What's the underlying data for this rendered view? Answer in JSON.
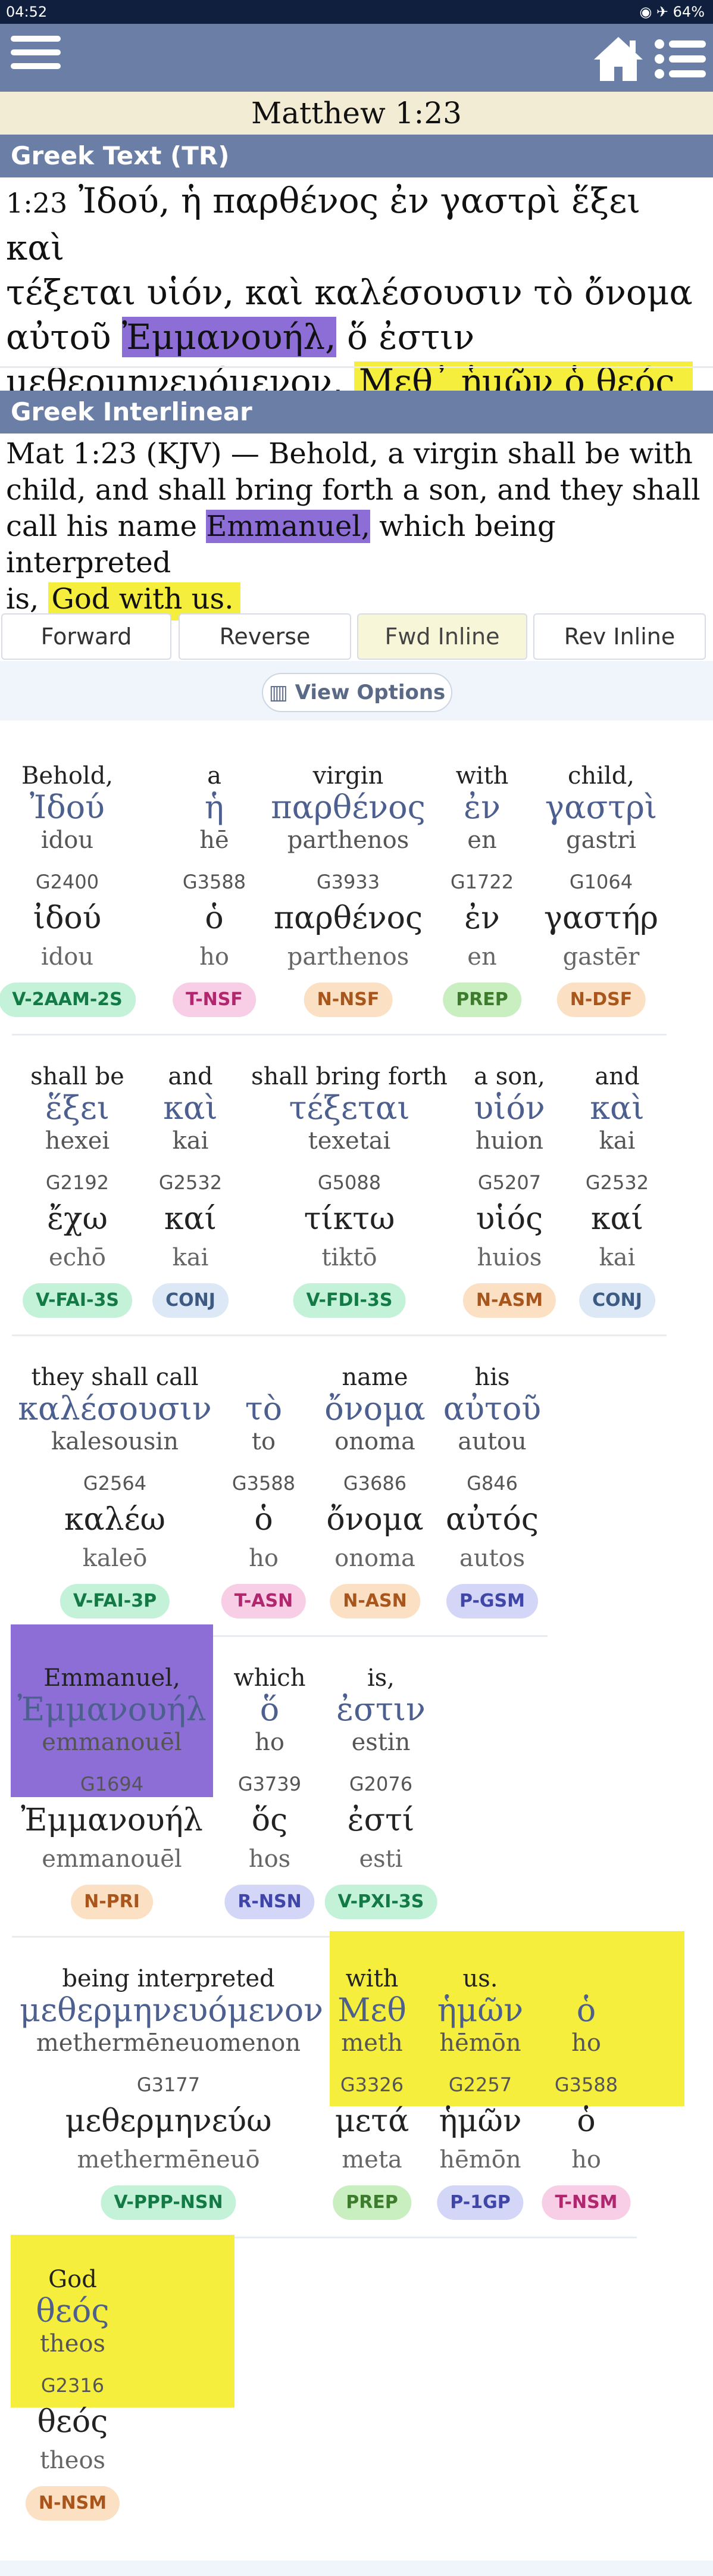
{
  "status": {
    "time": "04:52",
    "battery": "64%"
  },
  "page": {
    "title": "Matthew 1:23"
  },
  "greek_section": {
    "header": "Greek Text (TR)",
    "verse_num": "1:23",
    "line1": "Ἰδού, ἡ παρθένος ἐν γαστρὶ ἕξει καὶ",
    "line2": "τέξεται υἱόν, καὶ καλέσουσιν τὸ ὄνομα",
    "line3_a": "αὐτοῦ",
    "line3_hl": "Ἐμμανουήλ,",
    "line3_b": "ὅ ἐστιν",
    "line4_a": "μεθερμηνευόμενον,",
    "line4_hl": "Μεθ᾽ ἡμῶν ὁ θεός"
  },
  "interlinear_section": {
    "header": "Greek Interlinear",
    "kjv_1": "Mat 1:23 (KJV) — Behold, a virgin shall be with",
    "kjv_2": "child, and shall bring forth a son, and they shall",
    "kjv_3a": "call his name",
    "kjv_3hl": "Emmanuel,",
    "kjv_3b": "which being interpreted",
    "kjv_4a": "is,",
    "kjv_4hl": "God with us."
  },
  "tabs": [
    {
      "label": "Forward"
    },
    {
      "label": "Reverse"
    },
    {
      "label": "Fwd Inline"
    },
    {
      "label": "Rev Inline"
    }
  ],
  "view_options_label": "View Options",
  "colors": {
    "V": "#c3f2d9",
    "V_text": "#137a45",
    "T": "#f8cde6",
    "T_text": "#b0276d",
    "N": "#fbe0c3",
    "N_text": "#a8561c",
    "PREP": "#c9eec0",
    "PREP_text": "#3d7c2d",
    "CONJ": "#dce8f6",
    "CONJ_text": "#3c5a82",
    "P": "#d3d6f7",
    "P_text": "#3f46a8",
    "R": "#d3d6f7",
    "R_text": "#3f46a8"
  },
  "words": [
    {
      "en": "Behold,",
      "gr": "Ἰδού",
      "tr": "idou",
      "strong": "G2400",
      "lex": "ἰδού",
      "ltr": "idou",
      "morph": "V-2AAM-2S"
    },
    {
      "en": "a",
      "gr": "ἡ",
      "tr": "hē",
      "strong": "G3588",
      "lex": "ὁ",
      "ltr": "ho",
      "morph": "T-NSF"
    },
    {
      "en": "virgin",
      "gr": "παρθένος",
      "tr": "parthenos",
      "strong": "G3933",
      "lex": "παρθένος",
      "ltr": "parthenos",
      "morph": "N-NSF"
    },
    {
      "en": "with",
      "gr": "ἐν",
      "tr": "en",
      "strong": "G1722",
      "lex": "ἐν",
      "ltr": "en",
      "morph": "PREP"
    },
    {
      "en": "child,",
      "gr": "γαστρὶ",
      "tr": "gastri",
      "strong": "G1064",
      "lex": "γαστήρ",
      "ltr": "gastēr",
      "morph": "N-DSF"
    },
    {
      "en": "shall be",
      "gr": "ἕξει",
      "tr": "hexei",
      "strong": "G2192",
      "lex": "ἔχω",
      "ltr": "echō",
      "morph": "V-FAI-3S"
    },
    {
      "en": "and",
      "gr": "καὶ",
      "tr": "kai",
      "strong": "G2532",
      "lex": "καί",
      "ltr": "kai",
      "morph": "CONJ"
    },
    {
      "en": "shall bring forth",
      "gr": "τέξεται",
      "tr": "texetai",
      "strong": "G5088",
      "lex": "τίκτω",
      "ltr": "tiktō",
      "morph": "V-FDI-3S"
    },
    {
      "en": "a son,",
      "gr": "υἱόν",
      "tr": "huion",
      "strong": "G5207",
      "lex": "υἱός",
      "ltr": "huios",
      "morph": "N-ASM"
    },
    {
      "en": "and",
      "gr": "καὶ",
      "tr": "kai",
      "strong": "G2532",
      "lex": "καί",
      "ltr": "kai",
      "morph": "CONJ"
    },
    {
      "en": "they shall call",
      "gr": "καλέσουσιν",
      "tr": "kalesousin",
      "strong": "G2564",
      "lex": "καλέω",
      "ltr": "kaleō",
      "morph": "V-FAI-3P"
    },
    {
      "en": "",
      "gr": "τὸ",
      "tr": "to",
      "strong": "G3588",
      "lex": "ὁ",
      "ltr": "ho",
      "morph": "T-ASN"
    },
    {
      "en": "name",
      "gr": "ὄνομα",
      "tr": "onoma",
      "strong": "G3686",
      "lex": "ὄνομα",
      "ltr": "onoma",
      "morph": "N-ASN"
    },
    {
      "en": "his",
      "gr": "αὐτοῦ",
      "tr": "autou",
      "strong": "G846",
      "lex": "αὐτός",
      "ltr": "autos",
      "morph": "P-GSM"
    },
    {
      "en": "Emmanuel,",
      "gr": "Ἐμμανουήλ",
      "tr": "emmanouēl",
      "strong": "G1694",
      "lex": "Ἐμμανουήλ",
      "ltr": "emmanouēl",
      "morph": "N-PRI"
    },
    {
      "en": "which",
      "gr": "ὅ",
      "tr": "ho",
      "strong": "G3739",
      "lex": "ὅς",
      "ltr": "hos",
      "morph": "R-NSN"
    },
    {
      "en": "is,",
      "gr": "ἐστιν",
      "tr": "estin",
      "strong": "G2076",
      "lex": "ἐστί",
      "ltr": "esti",
      "morph": "V-PXI-3S"
    },
    {
      "en": "being interpreted",
      "gr": "μεθερμηνευόμενον",
      "tr": "methermēneuomenon",
      "strong": "G3177",
      "lex": "μεθερμηνεύω",
      "ltr": "methermēneuō",
      "morph": "V-PPP-NSN"
    },
    {
      "en": "with",
      "gr": "Μεθ",
      "tr": "meth",
      "strong": "G3326",
      "lex": "μετά",
      "ltr": "meta",
      "morph": "PREP"
    },
    {
      "en": "us.",
      "gr": "ἡμῶν",
      "tr": "hēmōn",
      "strong": "G2257",
      "lex": "ἡμῶν",
      "ltr": "hēmōn",
      "morph": "P-1GP"
    },
    {
      "en": "",
      "gr": "ὁ",
      "tr": "ho",
      "strong": "G3588",
      "lex": "ὁ",
      "ltr": "ho",
      "morph": "T-NSM"
    },
    {
      "en": "God",
      "gr": "θεός",
      "tr": "theos",
      "strong": "G2316",
      "lex": "θεός",
      "ltr": "theos",
      "morph": "N-NSM"
    }
  ]
}
